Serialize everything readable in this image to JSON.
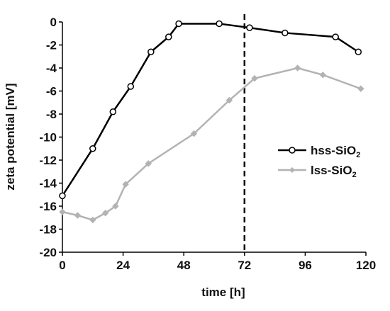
{
  "chart_data": {
    "type": "line",
    "xlabel": "time [h]",
    "ylabel": "zeta potential [mV]",
    "xlim": [
      0,
      120
    ],
    "ylim": [
      -20,
      0
    ],
    "x_ticks": [
      "0",
      "24",
      "48",
      "72",
      "96",
      "120"
    ],
    "x_tick_values": [
      0,
      24,
      48,
      72,
      96,
      120
    ],
    "y_ticks": [
      "0",
      "-2",
      "-4",
      "-6",
      "-8",
      "-10",
      "-12",
      "-14",
      "-16",
      "-18",
      "-20"
    ],
    "y_tick_values": [
      0,
      -2,
      -4,
      -6,
      -8,
      -10,
      -12,
      -14,
      -16,
      -18,
      -20
    ],
    "reference_line": {
      "x": 72,
      "style": "dashed",
      "color": "#000000"
    },
    "grid": false,
    "legend_placement": "right",
    "series": [
      {
        "name": "hss-SiO",
        "name_subscript": "2",
        "color": "#000000",
        "marker": "open-circle",
        "x": [
          0,
          12,
          20,
          27,
          35,
          42,
          46,
          62,
          74,
          88,
          108,
          117
        ],
        "y": [
          -15.1,
          -11.0,
          -7.8,
          -5.6,
          -2.6,
          -1.3,
          -0.15,
          -0.15,
          -0.5,
          -0.95,
          -1.3,
          -2.6
        ]
      },
      {
        "name": "lss-SiO",
        "name_subscript": "2",
        "color": "#b3b3b3",
        "marker": "diamond",
        "x": [
          0,
          6,
          12,
          17,
          21,
          25,
          34,
          52,
          66,
          76,
          93,
          103,
          118
        ],
        "y": [
          -16.5,
          -16.8,
          -17.2,
          -16.6,
          -16.0,
          -14.1,
          -12.3,
          -9.7,
          -6.8,
          -4.9,
          -4.0,
          -4.6,
          -5.8
        ]
      }
    ]
  }
}
